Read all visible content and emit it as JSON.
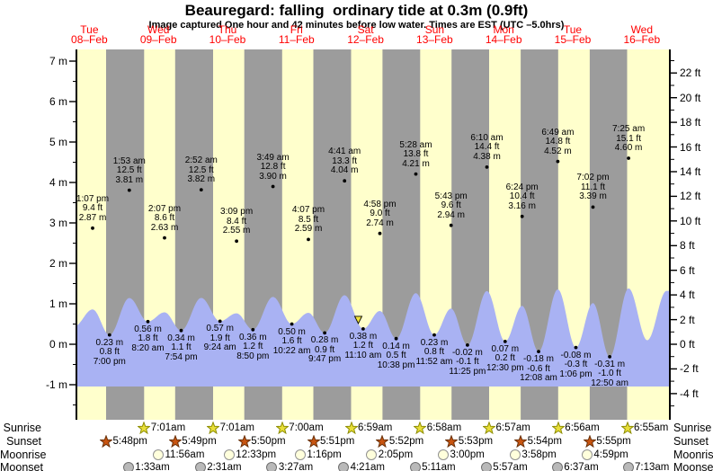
{
  "header": {
    "title": "Beauregard: falling  ordinary tide at 0.3m (0.9ft)",
    "subtitle": "Image captured One hour and 42 minutes before low water. Times are EST (UTC –5.0hrs)"
  },
  "chart_data": {
    "type": "area",
    "title": "Beauregard: falling  ordinary tide at 0.3m (0.9ft)",
    "days": [
      {
        "name": "Tue",
        "date": "08–Feb"
      },
      {
        "name": "Wed",
        "date": "09–Feb"
      },
      {
        "name": "Thu",
        "date": "10–Feb"
      },
      {
        "name": "Fri",
        "date": "11–Feb"
      },
      {
        "name": "Sat",
        "date": "12–Feb"
      },
      {
        "name": "Sun",
        "date": "13–Feb"
      },
      {
        "name": "Mon",
        "date": "14–Feb"
      },
      {
        "name": "Tue",
        "date": "15–Feb"
      },
      {
        "name": "Wed",
        "date": "16–Feb"
      }
    ],
    "y_left": {
      "unit": "m",
      "ticks": [
        {
          "label": "7 m",
          "value": 7
        },
        {
          "label": "6 m",
          "value": 6
        },
        {
          "label": "5 m",
          "value": 5
        },
        {
          "label": "4 m",
          "value": 4
        },
        {
          "label": "3 m",
          "value": 3
        },
        {
          "label": "2 m",
          "value": 2
        },
        {
          "label": "1 m",
          "value": 1
        },
        {
          "label": "0 m",
          "value": 0
        },
        {
          "label": "-1 m",
          "value": -1
        }
      ]
    },
    "y_right": {
      "unit": "ft",
      "ticks": [
        {
          "label": "22 ft",
          "value": 22
        },
        {
          "label": "20 ft",
          "value": 20
        },
        {
          "label": "18 ft",
          "value": 18
        },
        {
          "label": "16 ft",
          "value": 16
        },
        {
          "label": "14 ft",
          "value": 14
        },
        {
          "label": "12 ft",
          "value": 12
        },
        {
          "label": "10 ft",
          "value": 10
        },
        {
          "label": "8 ft",
          "value": 8
        },
        {
          "label": "6 ft",
          "value": 6
        },
        {
          "label": "4 ft",
          "value": 4
        },
        {
          "label": "2 ft",
          "value": 2
        },
        {
          "label": "0 ft",
          "value": 0
        },
        {
          "label": "-2 ft",
          "value": -2
        },
        {
          "label": "-4 ft",
          "value": -4
        }
      ]
    },
    "high_tides": [
      {
        "day": 8,
        "time": "1:07 pm",
        "ft": "9.4 ft",
        "m": "2.87 m"
      },
      {
        "day": 9,
        "time": "1:53 am",
        "ft": "12.5 ft",
        "m": "3.81 m"
      },
      {
        "day": 9,
        "time": "2:07 pm",
        "ft": "8.6 ft",
        "m": "2.63 m"
      },
      {
        "day": 10,
        "time": "2:52 am",
        "ft": "12.5 ft",
        "m": "3.82 m"
      },
      {
        "day": 10,
        "time": "3:09 pm",
        "ft": "8.4 ft",
        "m": "2.55 m"
      },
      {
        "day": 11,
        "time": "3:49 am",
        "ft": "12.8 ft",
        "m": "3.90 m"
      },
      {
        "day": 11,
        "time": "4:07 pm",
        "ft": "8.5 ft",
        "m": "2.59 m"
      },
      {
        "day": 12,
        "time": "4:41 am",
        "ft": "13.3 ft",
        "m": "4.04 m"
      },
      {
        "day": 12,
        "time": "4:58 pm",
        "ft": "9.0 ft",
        "m": "2.74 m"
      },
      {
        "day": 13,
        "time": "5:28 am",
        "ft": "13.8 ft",
        "m": "4.21 m"
      },
      {
        "day": 13,
        "time": "5:43 pm",
        "ft": "9.6 ft",
        "m": "2.94 m"
      },
      {
        "day": 14,
        "time": "6:10 am",
        "ft": "14.4 ft",
        "m": "4.38 m"
      },
      {
        "day": 14,
        "time": "6:24 pm",
        "ft": "10.4 ft",
        "m": "3.16 m"
      },
      {
        "day": 15,
        "time": "6:49 am",
        "ft": "14.8 ft",
        "m": "4.52 m"
      },
      {
        "day": 15,
        "time": "7:02 pm",
        "ft": "11.1 ft",
        "m": "3.39 m"
      },
      {
        "day": 16,
        "time": "7:25 am",
        "ft": "15.1 ft",
        "m": "4.60 m"
      }
    ],
    "low_tides": [
      {
        "day": 8,
        "time": "7:00 pm",
        "ft": "0.8 ft",
        "m": "0.23 m"
      },
      {
        "day": 9,
        "time": "8:20 am",
        "ft": "1.8 ft",
        "m": "0.56 m"
      },
      {
        "day": 9,
        "time": "7:54 pm",
        "ft": "1.1 ft",
        "m": "0.34 m"
      },
      {
        "day": 10,
        "time": "9:24 am",
        "ft": "1.9 ft",
        "m": "0.57 m"
      },
      {
        "day": 10,
        "time": "8:50 pm",
        "ft": "1.2 ft",
        "m": "0.36 m"
      },
      {
        "day": 11,
        "time": "10:22 am",
        "ft": "1.6 ft",
        "m": "0.50 m"
      },
      {
        "day": 11,
        "time": "9:47 pm",
        "ft": "0.9 ft",
        "m": "0.28 m"
      },
      {
        "day": 12,
        "time": "11:10 am",
        "ft": "1.2 ft",
        "m": "0.38 m"
      },
      {
        "day": 12,
        "time": "10:38 pm",
        "ft": "0.5 ft",
        "m": "0.14 m"
      },
      {
        "day": 13,
        "time": "11:52 am",
        "ft": "0.8 ft",
        "m": "0.23 m"
      },
      {
        "day": 13,
        "time": "11:25 pm",
        "ft": "-0.1 ft",
        "m": "-0.02 m"
      },
      {
        "day": 14,
        "time": "12:30 pm",
        "ft": "0.2 ft",
        "m": "0.07 m"
      },
      {
        "day": 15,
        "time": "12:08 am",
        "ft": "-0.6 ft",
        "m": "-0.18 m"
      },
      {
        "day": 15,
        "time": "1:06 pm",
        "ft": "-0.3 ft",
        "m": "-0.08 m"
      },
      {
        "day": 16,
        "time": "12:50 am",
        "ft": "-1.0 ft",
        "m": "-0.31 m"
      }
    ],
    "current_marker": {
      "day": 12,
      "time": "9:28 am"
    },
    "curve": {
      "crest_scale": 0.3,
      "edge_extrema": [
        {
          "t": 6.7,
          "m": 0.44
        },
        {
          "t": 205.9,
          "m": 0.1
        },
        {
          "t": 212.6,
          "m": 1.32
        }
      ]
    }
  },
  "astro": {
    "rows": [
      {
        "label": "Sunrise",
        "icon": "sunrise-star-icon",
        "shape": "star",
        "fill": "#e8de39",
        "stroke": "#8d8d00",
        "events": [
          {
            "day": 9,
            "time": "7:01am"
          },
          {
            "day": 10,
            "time": "7:01am"
          },
          {
            "day": 11,
            "time": "7:00am"
          },
          {
            "day": 12,
            "time": "6:59am"
          },
          {
            "day": 13,
            "time": "6:58am"
          },
          {
            "day": 14,
            "time": "6:57am"
          },
          {
            "day": 15,
            "time": "6:56am"
          },
          {
            "day": 16,
            "time": "6:55am"
          }
        ]
      },
      {
        "label": "Sunset",
        "icon": "sunset-star-icon",
        "shape": "star",
        "fill": "#c85410",
        "stroke": "#69310a",
        "events": [
          {
            "day": 8,
            "time": "5:48pm"
          },
          {
            "day": 9,
            "time": "5:49pm"
          },
          {
            "day": 10,
            "time": "5:50pm"
          },
          {
            "day": 11,
            "time": "5:51pm"
          },
          {
            "day": 12,
            "time": "5:52pm"
          },
          {
            "day": 13,
            "time": "5:53pm"
          },
          {
            "day": 14,
            "time": "5:54pm"
          },
          {
            "day": 15,
            "time": "5:55pm"
          }
        ]
      },
      {
        "label": "Moonrise",
        "icon": "moonrise-disc-icon",
        "shape": "disc",
        "fill": "#ffffdc",
        "stroke": "#909090",
        "events": [
          {
            "day": 9,
            "time": "11:56am"
          },
          {
            "day": 10,
            "time": "12:33pm"
          },
          {
            "day": 11,
            "time": "1:16pm"
          },
          {
            "day": 12,
            "time": "2:05pm"
          },
          {
            "day": 13,
            "time": "3:00pm"
          },
          {
            "day": 14,
            "time": "3:58pm"
          },
          {
            "day": 15,
            "time": "4:59pm"
          }
        ]
      },
      {
        "label": "Moonset",
        "icon": "moonset-disc-icon",
        "shape": "disc",
        "fill": "#b9b9b9",
        "stroke": "#6e6e6e",
        "events": [
          {
            "day": 9,
            "time": "1:33am"
          },
          {
            "day": 10,
            "time": "2:31am"
          },
          {
            "day": 11,
            "time": "3:27am"
          },
          {
            "day": 12,
            "time": "4:21am"
          },
          {
            "day": 13,
            "time": "5:11am"
          },
          {
            "day": 14,
            "time": "5:57am"
          },
          {
            "day": 15,
            "time": "6:37am"
          },
          {
            "day": 16,
            "time": "7:13am"
          }
        ]
      }
    ]
  },
  "colors": {
    "day_band": "#ffffcc",
    "night_band": "#9c9c9c",
    "water": "#a9b2f3",
    "date_red": "#ff0000",
    "axis": "#000000",
    "marker": "#f2e33c"
  }
}
